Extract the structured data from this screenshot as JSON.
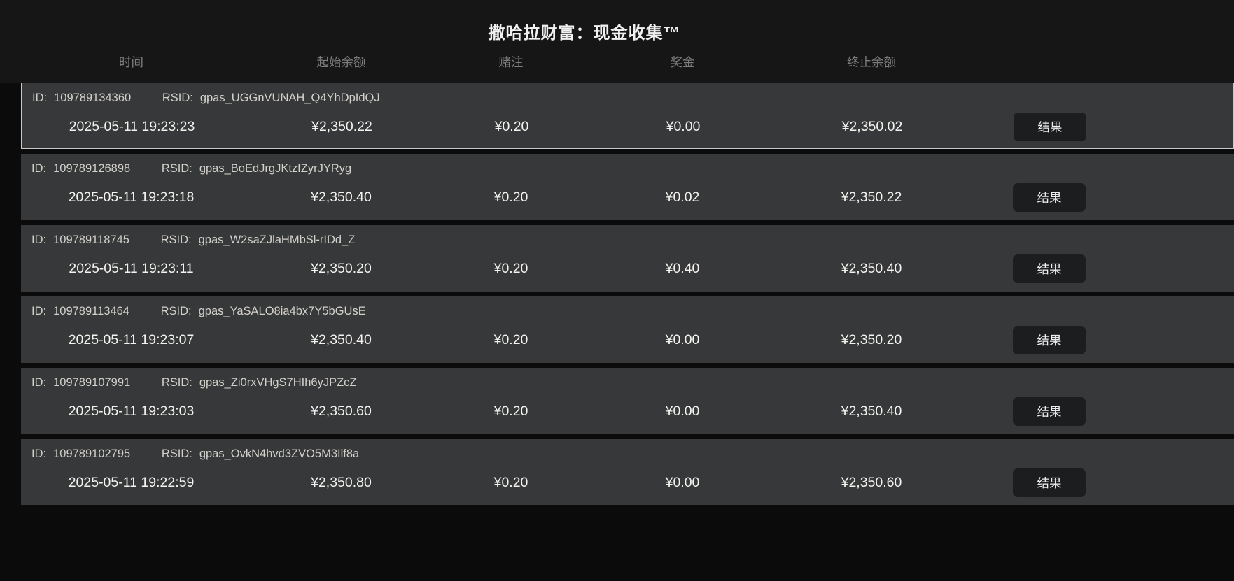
{
  "title": "撒哈拉财富：现金收集™",
  "columns": {
    "time": "时间",
    "start_balance": "起始余额",
    "bet": "赌注",
    "win": "奖金",
    "end_balance": "终止余额"
  },
  "row_labels": {
    "id": "ID:",
    "rsid": "RSID:"
  },
  "result_button_label": "结果",
  "colors": {
    "top_band_bg": "#161616",
    "row_bg": "#363839",
    "button_bg": "#1b1d1e",
    "selected_row_border": "#c9c9c9",
    "header_text": "#7d7d7d",
    "value_text": "#f5f3f0"
  },
  "rows": [
    {
      "id": "109789134360",
      "rsid": "gpas_UGGnVUNAH_Q4YhDpIdQJ",
      "time": "2025-05-11 19:23:23",
      "start_balance": "¥2,350.22",
      "bet": "¥0.20",
      "win": "¥0.00",
      "end_balance": "¥2,350.02",
      "selected": true
    },
    {
      "id": "109789126898",
      "rsid": "gpas_BoEdJrgJKtzfZyrJYRyg",
      "time": "2025-05-11 19:23:18",
      "start_balance": "¥2,350.40",
      "bet": "¥0.20",
      "win": "¥0.02",
      "end_balance": "¥2,350.22",
      "selected": false
    },
    {
      "id": "109789118745",
      "rsid": "gpas_W2saZJlaHMbSl-rIDd_Z",
      "time": "2025-05-11 19:23:11",
      "start_balance": "¥2,350.20",
      "bet": "¥0.20",
      "win": "¥0.40",
      "end_balance": "¥2,350.40",
      "selected": false
    },
    {
      "id": "109789113464",
      "rsid": "gpas_YaSALO8ia4bx7Y5bGUsE",
      "time": "2025-05-11 19:23:07",
      "start_balance": "¥2,350.40",
      "bet": "¥0.20",
      "win": "¥0.00",
      "end_balance": "¥2,350.20",
      "selected": false
    },
    {
      "id": "109789107991",
      "rsid": "gpas_Zi0rxVHgS7HIh6yJPZcZ",
      "time": "2025-05-11 19:23:03",
      "start_balance": "¥2,350.60",
      "bet": "¥0.20",
      "win": "¥0.00",
      "end_balance": "¥2,350.40",
      "selected": false
    },
    {
      "id": "109789102795",
      "rsid": "gpas_OvkN4hvd3ZVO5M3Ilf8a",
      "time": "2025-05-11 19:22:59",
      "start_balance": "¥2,350.80",
      "bet": "¥0.20",
      "win": "¥0.00",
      "end_balance": "¥2,350.60",
      "selected": false
    }
  ]
}
